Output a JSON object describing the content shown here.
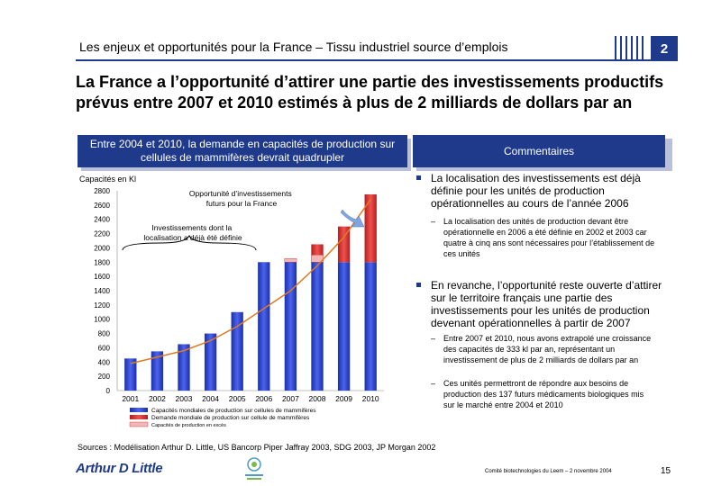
{
  "header": {
    "title": "Les enjeux et opportunités pour la France – Tissu industriel source d’emplois",
    "section_number": "2"
  },
  "main_title": "La France a l’opportunité d’attirer une partie des investissements productifs prévus entre 2007 et 2010 estimés à plus de 2 milliards de dollars par an",
  "chart_panel": {
    "heading": "Entre 2004 et 2010, la demande en capacités de production sur cellules de mammifères devrait quadrupler"
  },
  "chart_data": {
    "type": "bar",
    "ylabel": "Capacités en Kl",
    "ylim": [
      0,
      2800
    ],
    "yticks": [
      0,
      200,
      400,
      600,
      800,
      1000,
      1200,
      1400,
      1600,
      1800,
      2000,
      2200,
      2400,
      2600,
      2800
    ],
    "categories": [
      "2001",
      "2002",
      "2003",
      "2004",
      "2005",
      "2006",
      "2007",
      "2008",
      "2009",
      "2010"
    ],
    "series": [
      {
        "name": "Capacités mondiales de production sur cellules de mammifères",
        "values": [
          450,
          550,
          650,
          800,
          1100,
          1800,
          1800,
          1800,
          1800,
          1800
        ]
      },
      {
        "name": "Capacités de production en excès",
        "values": [
          0,
          0,
          0,
          0,
          0,
          0,
          50,
          100,
          0,
          0
        ]
      },
      {
        "name": "Demande mondiale de production sur cellules de mammifères",
        "values": [
          0,
          0,
          0,
          0,
          0,
          0,
          0,
          150,
          500,
          950
        ]
      }
    ],
    "demand_curve": [
      380,
      470,
      560,
      700,
      900,
      1150,
      1400,
      1750,
      2150,
      2680
    ],
    "annotations": {
      "future": "Opportunité d’investissements futurs pour la France",
      "located": "Investissements dont la localisation a déjà été définie"
    },
    "legend": [
      "Capacités mondiales de production sur cellules de mammifères",
      "Demande mondiale de production sur cellule de mammifères",
      "Capacités de production en excès"
    ]
  },
  "comments": {
    "heading": "Commentaires",
    "bullet1": "La localisation des investissements est déjà définie pour les unités de production opérationnelles au cours de l’année 2006",
    "bullet1_sub1": "La localisation des unités de production devant être opérationnelle en 2006 a été définie en 2002 et 2003 car quatre à cinq ans sont nécessaires pour l’établissement de ces unités",
    "bullet2": "En revanche, l’opportunité reste ouverte d’attirer sur le territoire français une partie des investissements pour les unités de production devenant opérationnelles à partir de 2007",
    "bullet2_sub1": "Entre 2007 et 2010, nous avons extrapolé une croissance des capacités de 333 kl par an, représentant un investissement de plus de 2 milliards de dollars par an",
    "bullet2_sub2": "Ces unités permettront de répondre aux besoins de production des 137 futurs médicaments biologiques mis sur le marché entre 2004 et 2010"
  },
  "sources": "Sources : Modélisation Arthur D. Little, US Bancorp Piper Jaffray 2003, SDG 2003, JP Morgan 2002",
  "footer": {
    "logo_text": "Arthur D Little",
    "note": "Comité biotechnologies du Leem – 2 novembre 2004",
    "page": "15"
  },
  "colors": {
    "brand": "#1f3a8a",
    "bar_blue": "#2a3fd6",
    "bar_red": "#c62828",
    "curve": "#e07a1f"
  }
}
